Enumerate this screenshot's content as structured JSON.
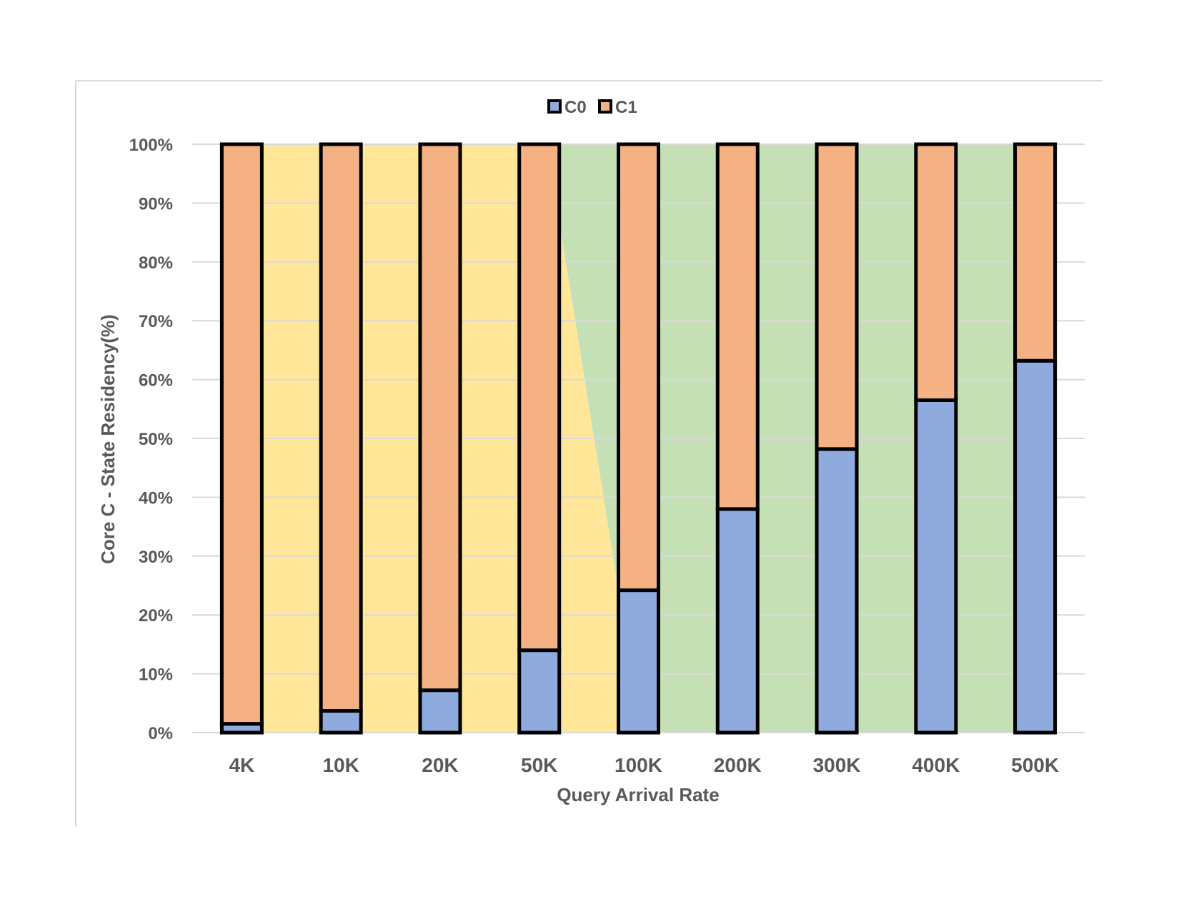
{
  "chart_data": {
    "type": "bar",
    "stacked": true,
    "percent": true,
    "categories": [
      "4K",
      "10K",
      "20K",
      "50K",
      "100K",
      "200K",
      "300K",
      "400K",
      "500K"
    ],
    "series": [
      {
        "name": "C0",
        "values": [
          1.5,
          3.7,
          7.2,
          14.0,
          24.2,
          38.0,
          48.2,
          56.5,
          63.2
        ]
      },
      {
        "name": "C1",
        "values": [
          98.5,
          96.3,
          92.8,
          86.0,
          75.8,
          62.0,
          51.8,
          43.5,
          36.8
        ]
      }
    ],
    "title": "",
    "xlabel": "Query Arrival Rate",
    "ylabel": "Core C - State Residency(%)",
    "ylim": [
      0,
      100
    ],
    "yticks": [
      "0%",
      "10%",
      "20%",
      "30%",
      "40%",
      "50%",
      "60%",
      "70%",
      "80%",
      "90%",
      "100%"
    ],
    "grid": true,
    "legend": "top-center",
    "background_regions": [
      {
        "name": "low-load-region",
        "color": "#FFE699"
      },
      {
        "name": "high-load-region",
        "color": "#C5E0B4"
      }
    ],
    "colors": {
      "C0": "#8FAADC",
      "C1": "#F4B183",
      "outline": "#000000",
      "grid": "#D9D9D9",
      "text": "#595959"
    }
  }
}
